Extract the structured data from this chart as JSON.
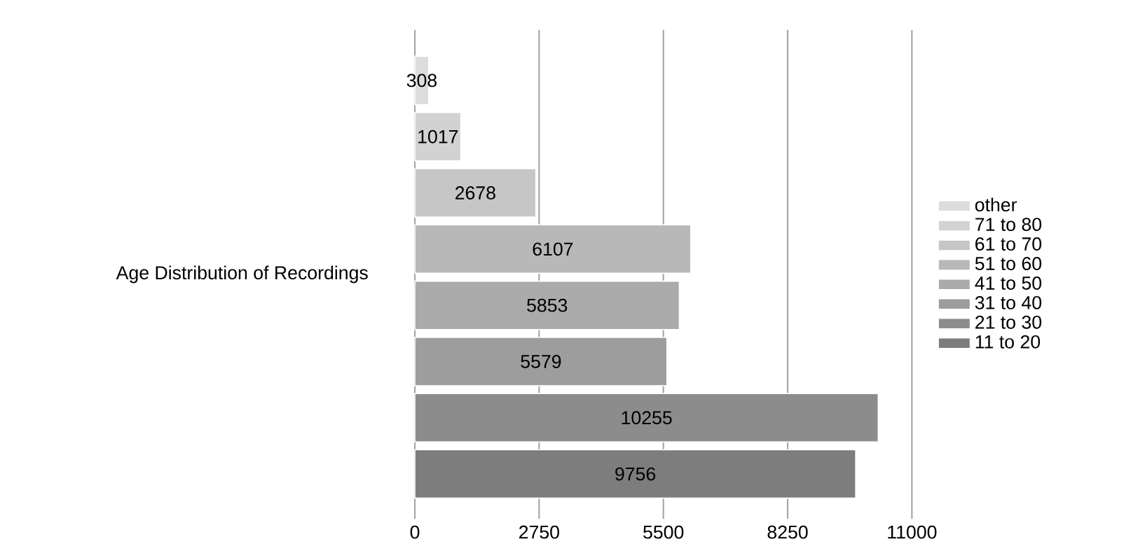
{
  "chart_data": {
    "type": "bar",
    "orientation": "horizontal",
    "ylabel": "Age Distribution of Recordings",
    "categories": [
      null,
      null,
      null,
      null,
      null,
      null,
      null,
      null
    ],
    "series": [
      {
        "name": "other",
        "color": "#dcdcdc",
        "values": [
          308,
          null,
          null,
          null,
          null,
          null,
          null,
          null
        ]
      },
      {
        "name": "71 to 80",
        "color": "#d2d2d2",
        "values": [
          null,
          1017,
          null,
          null,
          null,
          null,
          null,
          null
        ]
      },
      {
        "name": "61 to 70",
        "color": "#c6c6c6",
        "values": [
          null,
          null,
          2678,
          null,
          null,
          null,
          null,
          null
        ]
      },
      {
        "name": "51 to 60",
        "color": "#b8b8b8",
        "values": [
          null,
          null,
          null,
          6107,
          null,
          null,
          null,
          null
        ]
      },
      {
        "name": "41 to 50",
        "color": "#ababab",
        "values": [
          null,
          null,
          null,
          null,
          5853,
          null,
          null,
          null
        ]
      },
      {
        "name": "31 to 40",
        "color": "#9d9d9d",
        "values": [
          null,
          null,
          null,
          null,
          null,
          5579,
          null,
          null
        ]
      },
      {
        "name": "21 to 30",
        "color": "#8c8c8c",
        "values": [
          null,
          null,
          null,
          null,
          null,
          null,
          10255,
          null
        ]
      },
      {
        "name": "11 to 20",
        "color": "#7d7d7d",
        "values": [
          null,
          null,
          null,
          null,
          null,
          null,
          null,
          9756
        ]
      }
    ],
    "xlim": [
      0,
      11000
    ],
    "xticks": [
      0,
      2750,
      5500,
      8250,
      11000
    ],
    "grid": "x",
    "legend": "right",
    "data_labels": true
  }
}
